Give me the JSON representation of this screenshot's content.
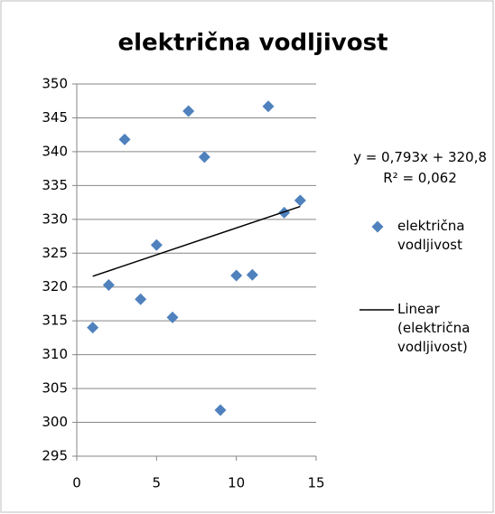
{
  "chart_data": {
    "type": "scatter",
    "title": "električna vodljivost",
    "series": [
      {
        "name": "električna vodljivost",
        "color": "#4f81bd",
        "x": [
          1,
          2,
          3,
          4,
          5,
          6,
          7,
          8,
          9,
          10,
          11,
          12,
          13,
          14
        ],
        "values": [
          314,
          320.3,
          341.8,
          318.2,
          326.2,
          315.5,
          346,
          339.2,
          301.8,
          321.7,
          321.8,
          346.7,
          331,
          332.8
        ]
      }
    ],
    "trendline": {
      "name": "Linear (električna vodljivost)",
      "color": "#000000",
      "slope": 0.793,
      "intercept": 320.8,
      "equation_label": "y = 0,793x + 320,8",
      "r2_label": "R² = 0,062"
    },
    "xlim": [
      0,
      15
    ],
    "xticks": [
      0,
      5,
      10,
      15
    ],
    "ylim": [
      295,
      350
    ],
    "yticks": [
      295,
      300,
      305,
      310,
      315,
      320,
      325,
      330,
      335,
      340,
      345,
      350
    ],
    "grid": true
  }
}
